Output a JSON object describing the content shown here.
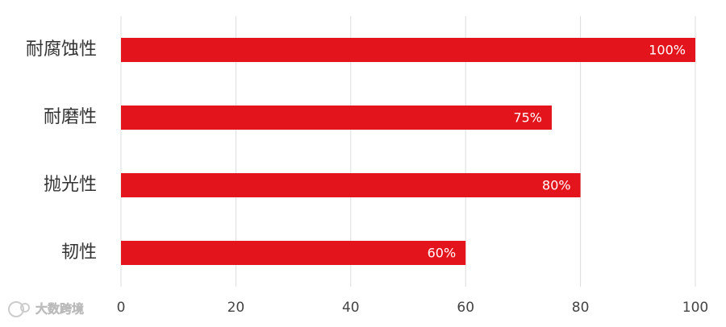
{
  "chart_data": {
    "type": "hbar",
    "categories": [
      "耐腐蚀性",
      "耐磨性",
      "抛光性",
      "韧性"
    ],
    "values": [
      100,
      75,
      80,
      60
    ],
    "value_labels": [
      "100%",
      "75%",
      "80%",
      "60%"
    ],
    "color": "#e3141c",
    "xlim": [
      0,
      100
    ],
    "xticks": [
      0,
      20,
      40,
      60,
      80,
      100
    ],
    "grid": true
  },
  "watermark": "大数跨境"
}
